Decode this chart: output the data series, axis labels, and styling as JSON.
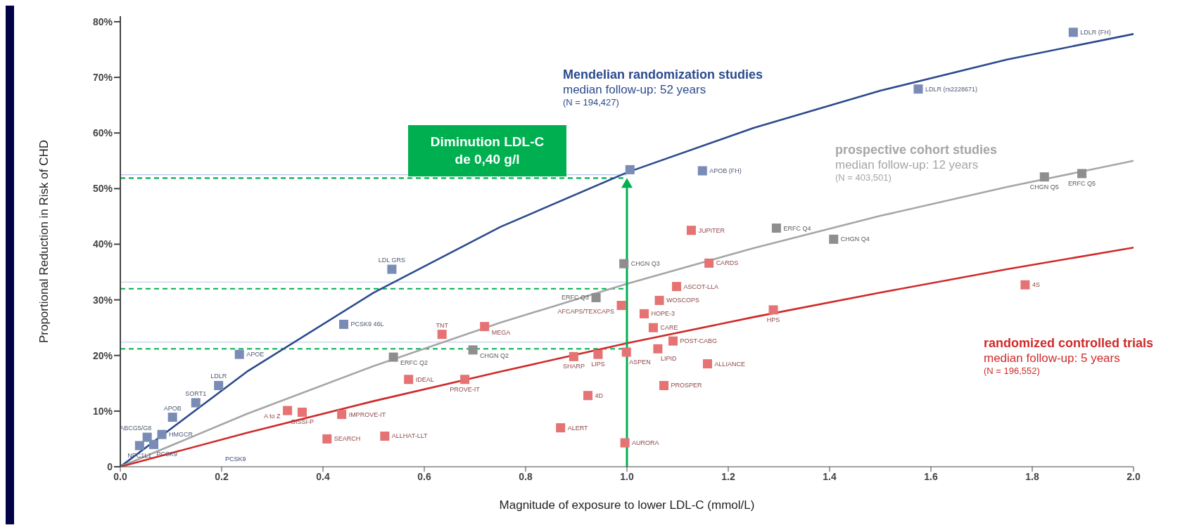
{
  "chart_data": {
    "type": "scatter",
    "xlabel": "Magnitude of exposure to lower LDL-C (mmol/L)",
    "ylabel": "Proportional Reduction in Risk of CHD",
    "marker": "square",
    "xlim": [
      0,
      2.0
    ],
    "xticks": [
      {
        "value": 0,
        "label": "0.0"
      },
      0.2,
      0.4,
      0.6,
      0.8,
      {
        "value": 1,
        "label": "1.0"
      },
      1.2,
      1.4,
      1.6,
      1.8,
      {
        "value": 2,
        "label": "2.0"
      }
    ],
    "ylim": [
      0,
      81
    ],
    "yticks": [
      0,
      {
        "value": 10,
        "label": "10%"
      },
      {
        "value": 20,
        "label": "20%"
      },
      {
        "value": 30,
        "label": "30%"
      },
      {
        "value": 40,
        "label": "40%"
      },
      {
        "value": 50,
        "label": "50%"
      },
      {
        "value": 60,
        "label": "60%"
      },
      {
        "value": 70,
        "label": "70%"
      },
      {
        "value": 80,
        "label": "80%"
      }
    ],
    "series": [
      {
        "type": "line",
        "name": "Mendelian randomization studies",
        "color": "#2c4a8e",
        "marker": "none",
        "x": [
          0,
          0.25,
          0.5,
          0.75,
          1.0,
          1.25,
          1.5,
          1.75,
          2.0
        ],
        "values": [
          0,
          17.1,
          31.3,
          43.1,
          52.9,
          60.9,
          67.6,
          73.2,
          77.8
        ]
      },
      {
        "color": "#7a8cb6",
        "x": [
          0.038,
          0.053,
          0.066,
          0.082,
          0.103,
          0.149,
          0.194,
          0.235,
          0.441,
          0.536,
          1.006,
          1.149,
          1.575,
          1.881
        ],
        "values": [
          3.8,
          5.3,
          4.0,
          5.8,
          8.9,
          11.5,
          14.6,
          20.2,
          25.6,
          35.5,
          53.4,
          53.2,
          67.9,
          78.1
        ]
      },
      {
        "type": "line",
        "name": "prospective cohort studies",
        "color": "#a6a6a6",
        "marker": "none",
        "x": [
          0,
          0.25,
          0.5,
          0.75,
          1.0,
          1.25,
          1.5,
          1.75,
          2.0
        ],
        "values": [
          0,
          9.5,
          18.1,
          25.9,
          32.9,
          39.3,
          45.1,
          50.3,
          55.0
        ]
      },
      {
        "color": "#8e8e8e",
        "x": [
          0.539,
          0.696,
          0.939,
          0.994,
          1.295,
          1.408,
          1.824,
          1.898
        ],
        "values": [
          19.7,
          21.0,
          30.4,
          36.5,
          42.9,
          40.9,
          52.1,
          52.7
        ]
      },
      {
        "type": "line",
        "name": "randomized controlled trials",
        "color": "#d02a2a",
        "marker": "none",
        "x": [
          0,
          0.25,
          0.5,
          0.75,
          1.0,
          1.25,
          1.5,
          1.75,
          2.0
        ],
        "values": [
          0,
          6.1,
          11.8,
          17.1,
          22.2,
          26.9,
          31.3,
          35.5,
          39.4
        ]
      },
      {
        "color": "#e57373",
        "x": [
          0.33,
          0.359,
          0.408,
          0.437,
          0.522,
          0.569,
          0.635,
          0.68,
          0.719,
          0.869,
          0.895,
          0.923,
          0.943,
          0.989,
          0.996,
          0.999,
          1.034,
          1.052,
          1.064,
          1.061,
          1.073,
          1.091,
          1.098,
          1.127,
          1.159,
          1.162,
          1.289,
          1.786
        ],
        "values": [
          10.1,
          9.8,
          5.0,
          9.4,
          5.5,
          15.7,
          23.8,
          15.7,
          25.2,
          7.0,
          19.8,
          12.8,
          20.2,
          29.0,
          4.3,
          20.6,
          27.5,
          25.0,
          29.9,
          21.2,
          14.6,
          22.6,
          32.4,
          42.5,
          18.5,
          36.6,
          28.2,
          32.7
        ]
      }
    ],
    "ref_lines": [
      {
        "axis": "x",
        "value": 1.0,
        "color": "#00b050"
      },
      {
        "axis": "y",
        "value": 51.9,
        "color": "#00b050",
        "line_style": "dashed"
      },
      {
        "axis": "y",
        "value": 32.0,
        "color": "#00b050",
        "line_style": "dashed"
      },
      {
        "axis": "y",
        "value": 21.2,
        "color": "#00b050",
        "line_style": "dashed"
      },
      {
        "axis": "y",
        "value": 52.5,
        "color": "#b4c7e7"
      },
      {
        "axis": "y",
        "value": 33.2,
        "color": "#b4c7e7"
      },
      {
        "axis": "y",
        "value": 22.4,
        "color": "#b4c7e7"
      }
    ],
    "annotations": [
      "Diminution LDL-C de 0,40 g/l",
      "median follow-up: 52 years",
      "(N = 194,427)",
      "median follow-up: 12 years",
      "(N = 403,501)",
      "median follow-up: 5 years",
      "(N = 196,552)",
      "PCSK9",
      {
        "text": "NPC1L1",
        "x": 0.038,
        "y": 3.8
      },
      {
        "text": "ABCG5/G8",
        "x": 0.053,
        "y": 5.3
      },
      {
        "text": "PCSK9",
        "x": 0.066,
        "y": 4.0
      },
      {
        "text": "HMGCR",
        "x": 0.082,
        "y": 5.8
      },
      {
        "text": "APOB",
        "x": 0.103,
        "y": 8.9
      },
      {
        "text": "SORT1",
        "x": 0.149,
        "y": 11.5
      },
      {
        "text": "LDLR",
        "x": 0.194,
        "y": 14.6
      },
      {
        "text": "APOE",
        "x": 0.235,
        "y": 20.2
      },
      {
        "text": "PCSK9 46L",
        "x": 0.441,
        "y": 25.6
      },
      {
        "text": "LDL GRS",
        "x": 0.536,
        "y": 35.5
      },
      {
        "text": "APOB (FH)",
        "x": 1.149,
        "y": 53.2
      },
      {
        "text": "LDLR (rs2228671)",
        "x": 1.575,
        "y": 67.9
      },
      {
        "text": "LDLR (FH)",
        "x": 1.881,
        "y": 78.1
      },
      {
        "text": "ERFC Q2",
        "x": 0.539,
        "y": 19.7
      },
      {
        "text": "CHGN Q2",
        "x": 0.696,
        "y": 21.0
      },
      {
        "text": "ERFC Q3",
        "x": 0.939,
        "y": 30.4
      },
      {
        "text": "CHGN Q3",
        "x": 0.994,
        "y": 36.5
      },
      {
        "text": "ERFC Q4",
        "x": 1.295,
        "y": 42.9
      },
      {
        "text": "CHGN Q4",
        "x": 1.408,
        "y": 40.9
      },
      {
        "text": "CHGN Q5",
        "x": 1.824,
        "y": 52.1
      },
      {
        "text": "ERFC Q5",
        "x": 1.898,
        "y": 52.7
      },
      {
        "text": "A to Z",
        "x": 0.33,
        "y": 10.1
      },
      {
        "text": "GISSI-P",
        "x": 0.359,
        "y": 9.8
      },
      {
        "text": "SEARCH",
        "x": 0.408,
        "y": 5.0
      },
      {
        "text": "IMPROVE-IT",
        "x": 0.437,
        "y": 9.4
      },
      {
        "text": "ALLHAT-LLT",
        "x": 0.522,
        "y": 5.5
      },
      {
        "text": "IDEAL",
        "x": 0.569,
        "y": 15.7
      },
      {
        "text": "TNT",
        "x": 0.635,
        "y": 23.8
      },
      {
        "text": "PROVE-IT",
        "x": 0.68,
        "y": 15.7
      },
      {
        "text": "MEGA",
        "x": 0.719,
        "y": 25.2
      },
      {
        "text": "ALERT",
        "x": 0.869,
        "y": 7.0
      },
      {
        "text": "SHARP",
        "x": 0.895,
        "y": 19.8
      },
      {
        "text": "4D",
        "x": 0.923,
        "y": 12.8
      },
      {
        "text": "LIPS",
        "x": 0.943,
        "y": 20.2
      },
      {
        "text": "AFCAPS/TEXCAPS",
        "x": 0.989,
        "y": 29.0
      },
      {
        "text": "AURORA",
        "x": 0.996,
        "y": 4.3
      },
      {
        "text": "ASPEN",
        "x": 0.999,
        "y": 20.6
      },
      {
        "text": "HOPE-3",
        "x": 1.034,
        "y": 27.5
      },
      {
        "text": "CARE",
        "x": 1.052,
        "y": 25.0
      },
      {
        "text": "WOSCOPS",
        "x": 1.064,
        "y": 29.9
      },
      {
        "text": "LIPID",
        "x": 1.061,
        "y": 21.2
      },
      {
        "text": "PROSPER",
        "x": 1.073,
        "y": 14.6
      },
      {
        "text": "POST-CABG",
        "x": 1.091,
        "y": 22.6
      },
      {
        "text": "ASCOT-LLA",
        "x": 1.098,
        "y": 32.4
      },
      {
        "text": "JUPITER",
        "x": 1.127,
        "y": 42.5
      },
      {
        "text": "ALLIANCE",
        "x": 1.159,
        "y": 18.5
      },
      {
        "text": "CARDS",
        "x": 1.162,
        "y": 36.6
      },
      {
        "text": "HPS",
        "x": 1.289,
        "y": 28.2
      },
      {
        "text": "4S",
        "x": 1.786,
        "y": 32.7
      }
    ]
  }
}
